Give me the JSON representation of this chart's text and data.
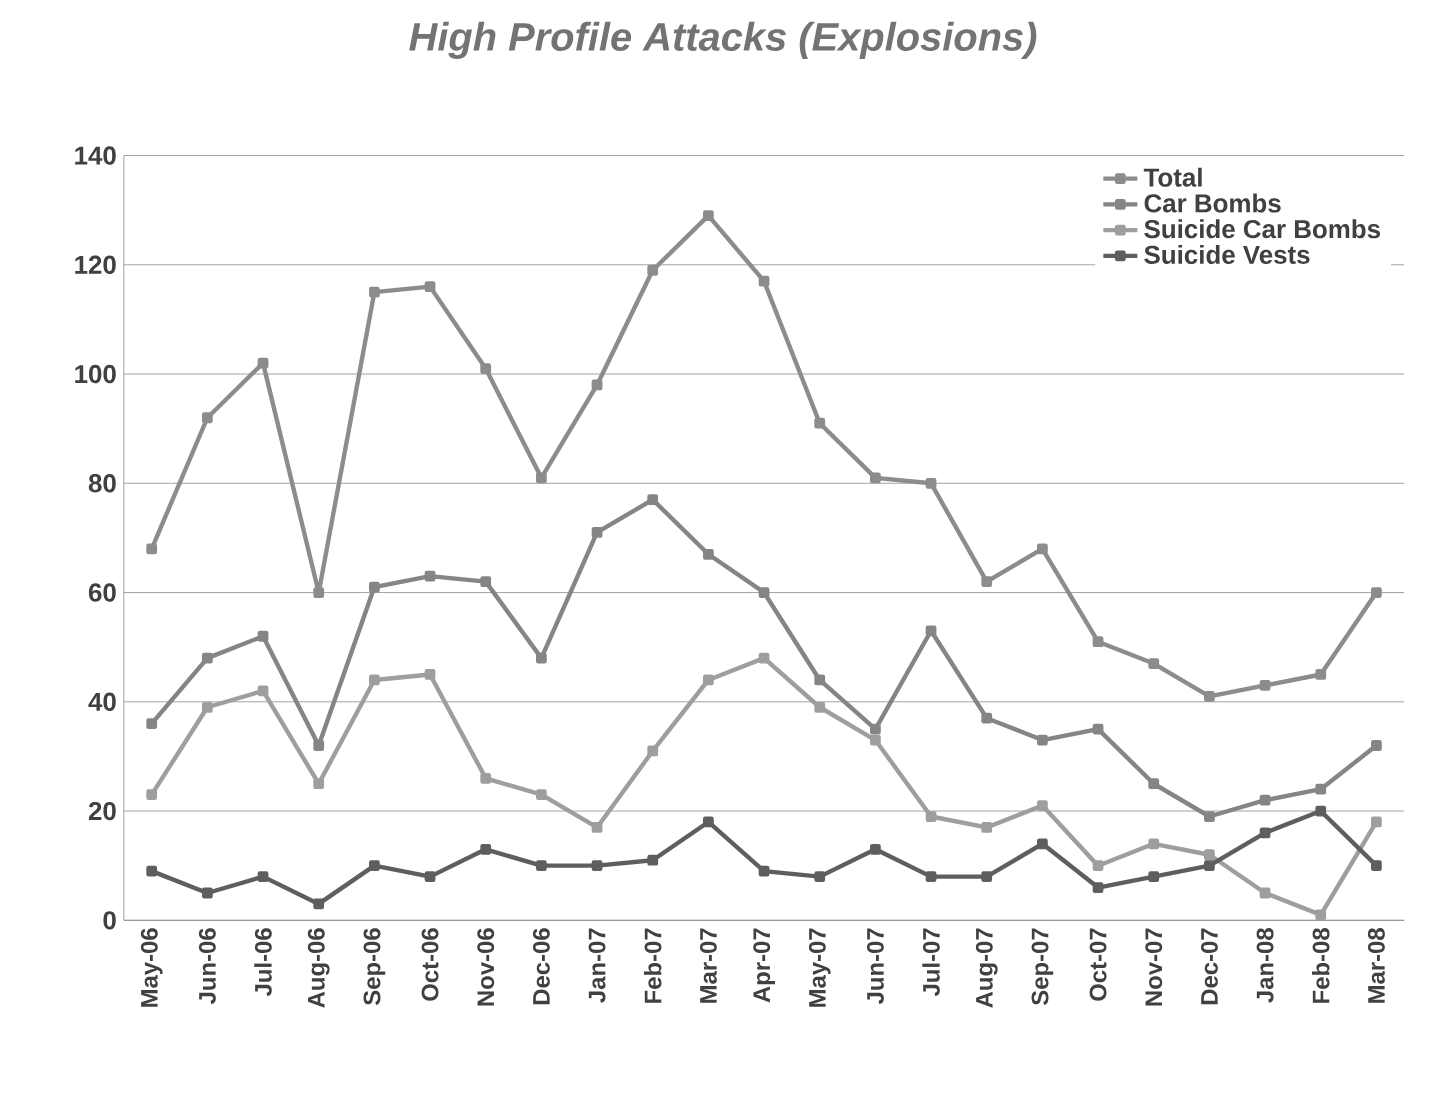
{
  "chart_data": {
    "type": "line",
    "title": "High Profile Attacks (Explosions)",
    "categories": [
      "May-06",
      "Jun-06",
      "Jul-06",
      "Aug-06",
      "Sep-06",
      "Oct-06",
      "Nov-06",
      "Dec-06",
      "Jan-07",
      "Feb-07",
      "Mar-07",
      "Apr-07",
      "May-07",
      "Jun-07",
      "Jul-07",
      "Aug-07",
      "Sep-07",
      "Oct-07",
      "Nov-07",
      "Dec-07",
      "Jan-08",
      "Feb-08",
      "Mar-08"
    ],
    "series": [
      {
        "name": "Total",
        "color": "#8c8c8c",
        "values": [
          68,
          92,
          102,
          60,
          115,
          116,
          101,
          81,
          98,
          119,
          129,
          117,
          91,
          81,
          80,
          62,
          68,
          51,
          47,
          41,
          43,
          45,
          60
        ]
      },
      {
        "name": "Car Bombs",
        "color": "#858585",
        "values": [
          36,
          48,
          52,
          32,
          61,
          63,
          62,
          48,
          71,
          77,
          67,
          60,
          44,
          35,
          53,
          37,
          33,
          35,
          25,
          19,
          22,
          24,
          32
        ]
      },
      {
        "name": "Suicide Car Bombs",
        "color": "#9e9e9e",
        "values": [
          23,
          39,
          42,
          25,
          44,
          45,
          26,
          23,
          17,
          31,
          44,
          48,
          39,
          33,
          19,
          17,
          21,
          10,
          14,
          12,
          5,
          1,
          18
        ]
      },
      {
        "name": "Suicide Vests",
        "color": "#5e5e5e",
        "values": [
          9,
          5,
          8,
          3,
          10,
          8,
          13,
          10,
          10,
          11,
          18,
          9,
          8,
          13,
          8,
          8,
          14,
          6,
          8,
          10,
          16,
          20,
          10
        ]
      }
    ],
    "ylim": [
      0,
      140
    ],
    "yticks": [
      0,
      20,
      40,
      60,
      80,
      100,
      120,
      140
    ],
    "grid": "y",
    "legend": "top right",
    "marker": "square",
    "line_style": "solid"
  }
}
